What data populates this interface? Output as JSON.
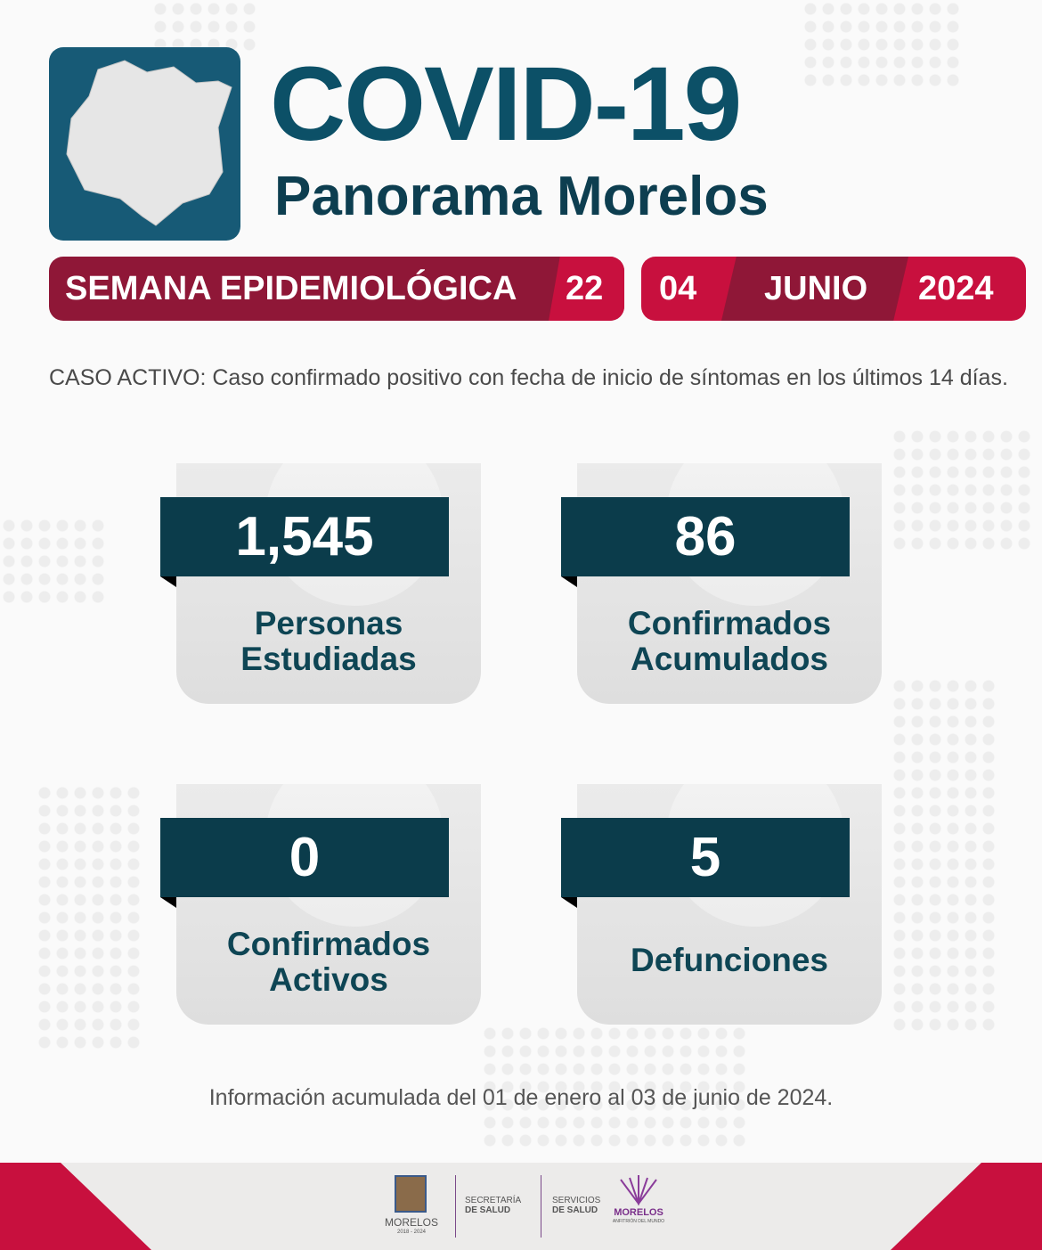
{
  "header": {
    "title": "COVID-19",
    "subtitle": "Panorama Morelos"
  },
  "week_banner": {
    "label": "SEMANA EPIDEMIOLÓGICA",
    "week": "22"
  },
  "date_banner": {
    "day": "04",
    "month": "JUNIO",
    "year": "2024"
  },
  "definition": "CASO ACTIVO: Caso confirmado positivo con fecha de inicio de síntomas en los últimos 14 días.",
  "stats": [
    {
      "value": "1,545",
      "label_line1": "Personas",
      "label_line2": "Estudiadas"
    },
    {
      "value": "86",
      "label_line1": "Confirmados",
      "label_line2": "Acumulados"
    },
    {
      "value": "0",
      "label_line1": "Confirmados",
      "label_line2": "Activos"
    },
    {
      "value": "5",
      "label_line1": "Defunciones",
      "label_line2": ""
    }
  ],
  "footnote": "Información acumulada del 01 de enero al 03 de junio de 2024.",
  "footer": {
    "state_logo": {
      "name": "MORELOS",
      "years": "2018 - 2024"
    },
    "secretaria": {
      "line1": "SECRETARÍA",
      "line2": "DE SALUD"
    },
    "servicios": {
      "line1": "SERVICIOS",
      "line2": "DE SALUD"
    },
    "gov_logo": {
      "name": "MORELOS",
      "tagline": "ANFITRIÓN DEL MUNDO"
    }
  },
  "colors": {
    "teal_dark": "#0b3c4b",
    "teal_title": "#0c5067",
    "maroon": "#8f1737",
    "crimson": "#c8103e"
  }
}
